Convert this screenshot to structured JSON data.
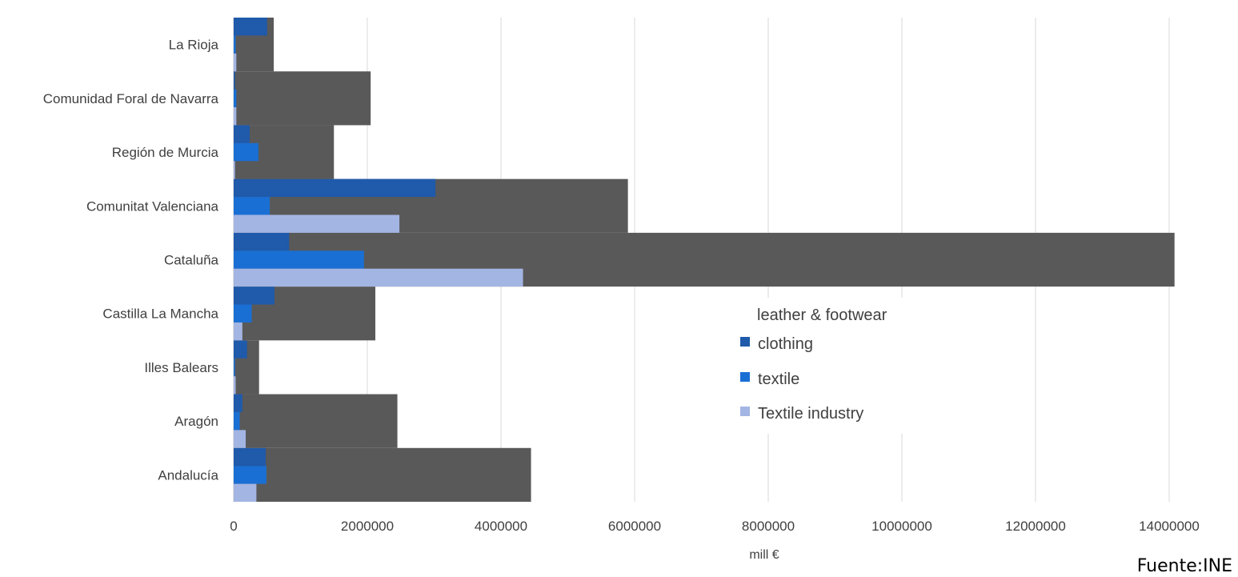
{
  "chart_data": {
    "type": "bar",
    "orientation": "horizontal",
    "categories": [
      "Andalucía",
      "Aragón",
      "Illes Balears",
      "Castilla La Mancha",
      "Cataluña",
      "Comunitat Valenciana",
      "Región de Murcia",
      "Comunidad Foral de Navarra",
      "La Rioja"
    ],
    "series": [
      {
        "name": "leather & footwear",
        "color": "#595959",
        "values": [
          4450000,
          2450000,
          380000,
          2120000,
          14080000,
          5900000,
          1500000,
          2050000,
          600000
        ]
      },
      {
        "name": "clothing",
        "color": "#1f5aab",
        "values": [
          480000,
          130000,
          200000,
          610000,
          830000,
          3020000,
          240000,
          20000,
          500000
        ]
      },
      {
        "name": "textile",
        "color": "#1a6fd4",
        "values": [
          490000,
          90000,
          20000,
          270000,
          1950000,
          540000,
          370000,
          40000,
          30000
        ]
      },
      {
        "name": "Textile industry",
        "color": "#a3b5e3",
        "values": [
          340000,
          180000,
          30000,
          130000,
          4330000,
          2480000,
          20000,
          40000,
          40000
        ]
      }
    ],
    "xlabel": "mill €",
    "ylabel": "",
    "xlim": [
      0,
      15000000
    ],
    "xticks": [
      "0",
      "2000000",
      "4000000",
      "6000000",
      "8000000",
      "10000000",
      "12000000",
      "14000000"
    ],
    "grid": true,
    "legend": "center-right",
    "source": "Fuente:INE"
  }
}
